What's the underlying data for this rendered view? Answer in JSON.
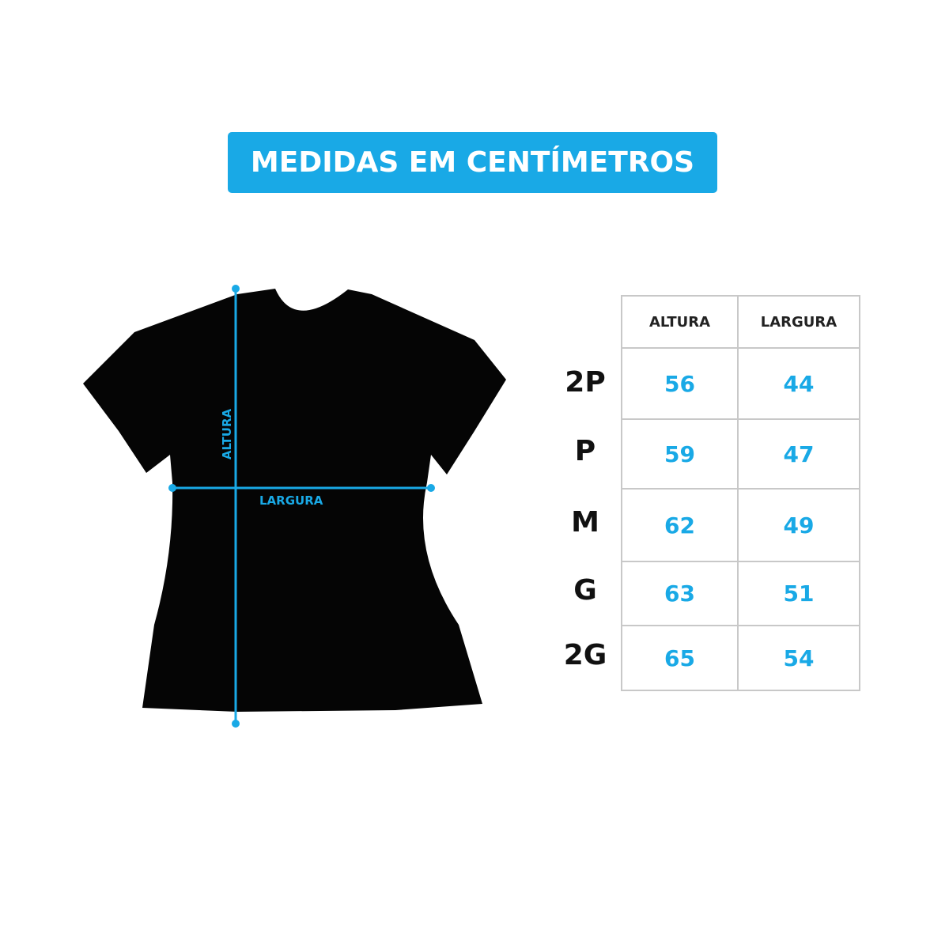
{
  "title": "MEDIDAS EM CENTÍMETROS",
  "diagram": {
    "height_label": "ALTURA",
    "width_label": "LARGURA",
    "accent_color": "#19a9e6",
    "garment_color": "#000000"
  },
  "table": {
    "headers": [
      "ALTURA",
      "LARGURA"
    ],
    "rows": [
      {
        "size": "2P",
        "altura": "56",
        "largura": "44"
      },
      {
        "size": "P",
        "altura": "59",
        "largura": "47"
      },
      {
        "size": "M",
        "altura": "62",
        "largura": "49"
      },
      {
        "size": "G",
        "altura": "63",
        "largura": "51"
      },
      {
        "size": "2G",
        "altura": "65",
        "largura": "54"
      }
    ]
  }
}
